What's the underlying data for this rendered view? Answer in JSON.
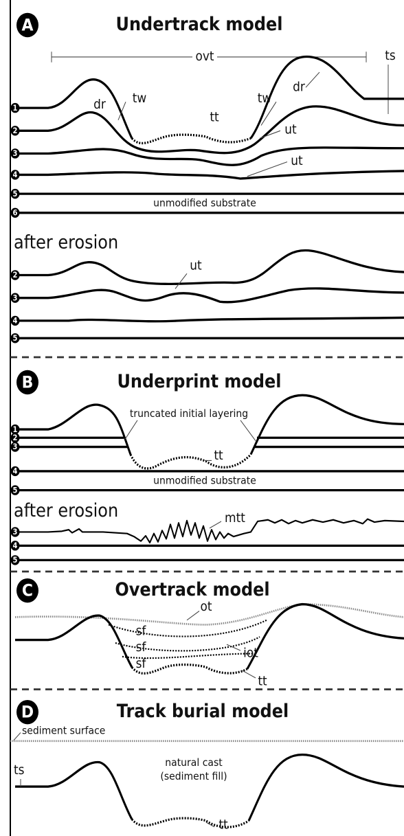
{
  "panels": [
    {
      "letter": "A",
      "title": "Undertrack model",
      "labels": [
        "ovt",
        "ts",
        "dr",
        "tw",
        "tt",
        "tw",
        "dr",
        "ut",
        "ut",
        "unmodified substrate"
      ],
      "layers": [
        "1",
        "2",
        "3",
        "4",
        "5",
        "6"
      ],
      "after": {
        "title": "after erosion",
        "labels": [
          "ut"
        ],
        "layers": [
          "2",
          "3",
          "4",
          "5"
        ]
      }
    },
    {
      "letter": "B",
      "title": "Underprint model",
      "labels": [
        "truncated initial layering",
        "tt",
        "unmodified substrate"
      ],
      "layers": [
        "1",
        "2",
        "3",
        "4",
        "5"
      ],
      "after": {
        "title": "after erosion",
        "labels": [
          "mtt"
        ],
        "layers": [
          "3",
          "4",
          "5"
        ]
      }
    },
    {
      "letter": "C",
      "title": "Overtrack model",
      "labels": [
        "ot",
        "sf",
        "sf",
        "sf",
        "iot",
        "tt"
      ]
    },
    {
      "letter": "D",
      "title": "Track burial model",
      "labels": [
        "sediment surface",
        "ts",
        "natural cast",
        "(sediment fill)",
        "tt"
      ]
    }
  ]
}
